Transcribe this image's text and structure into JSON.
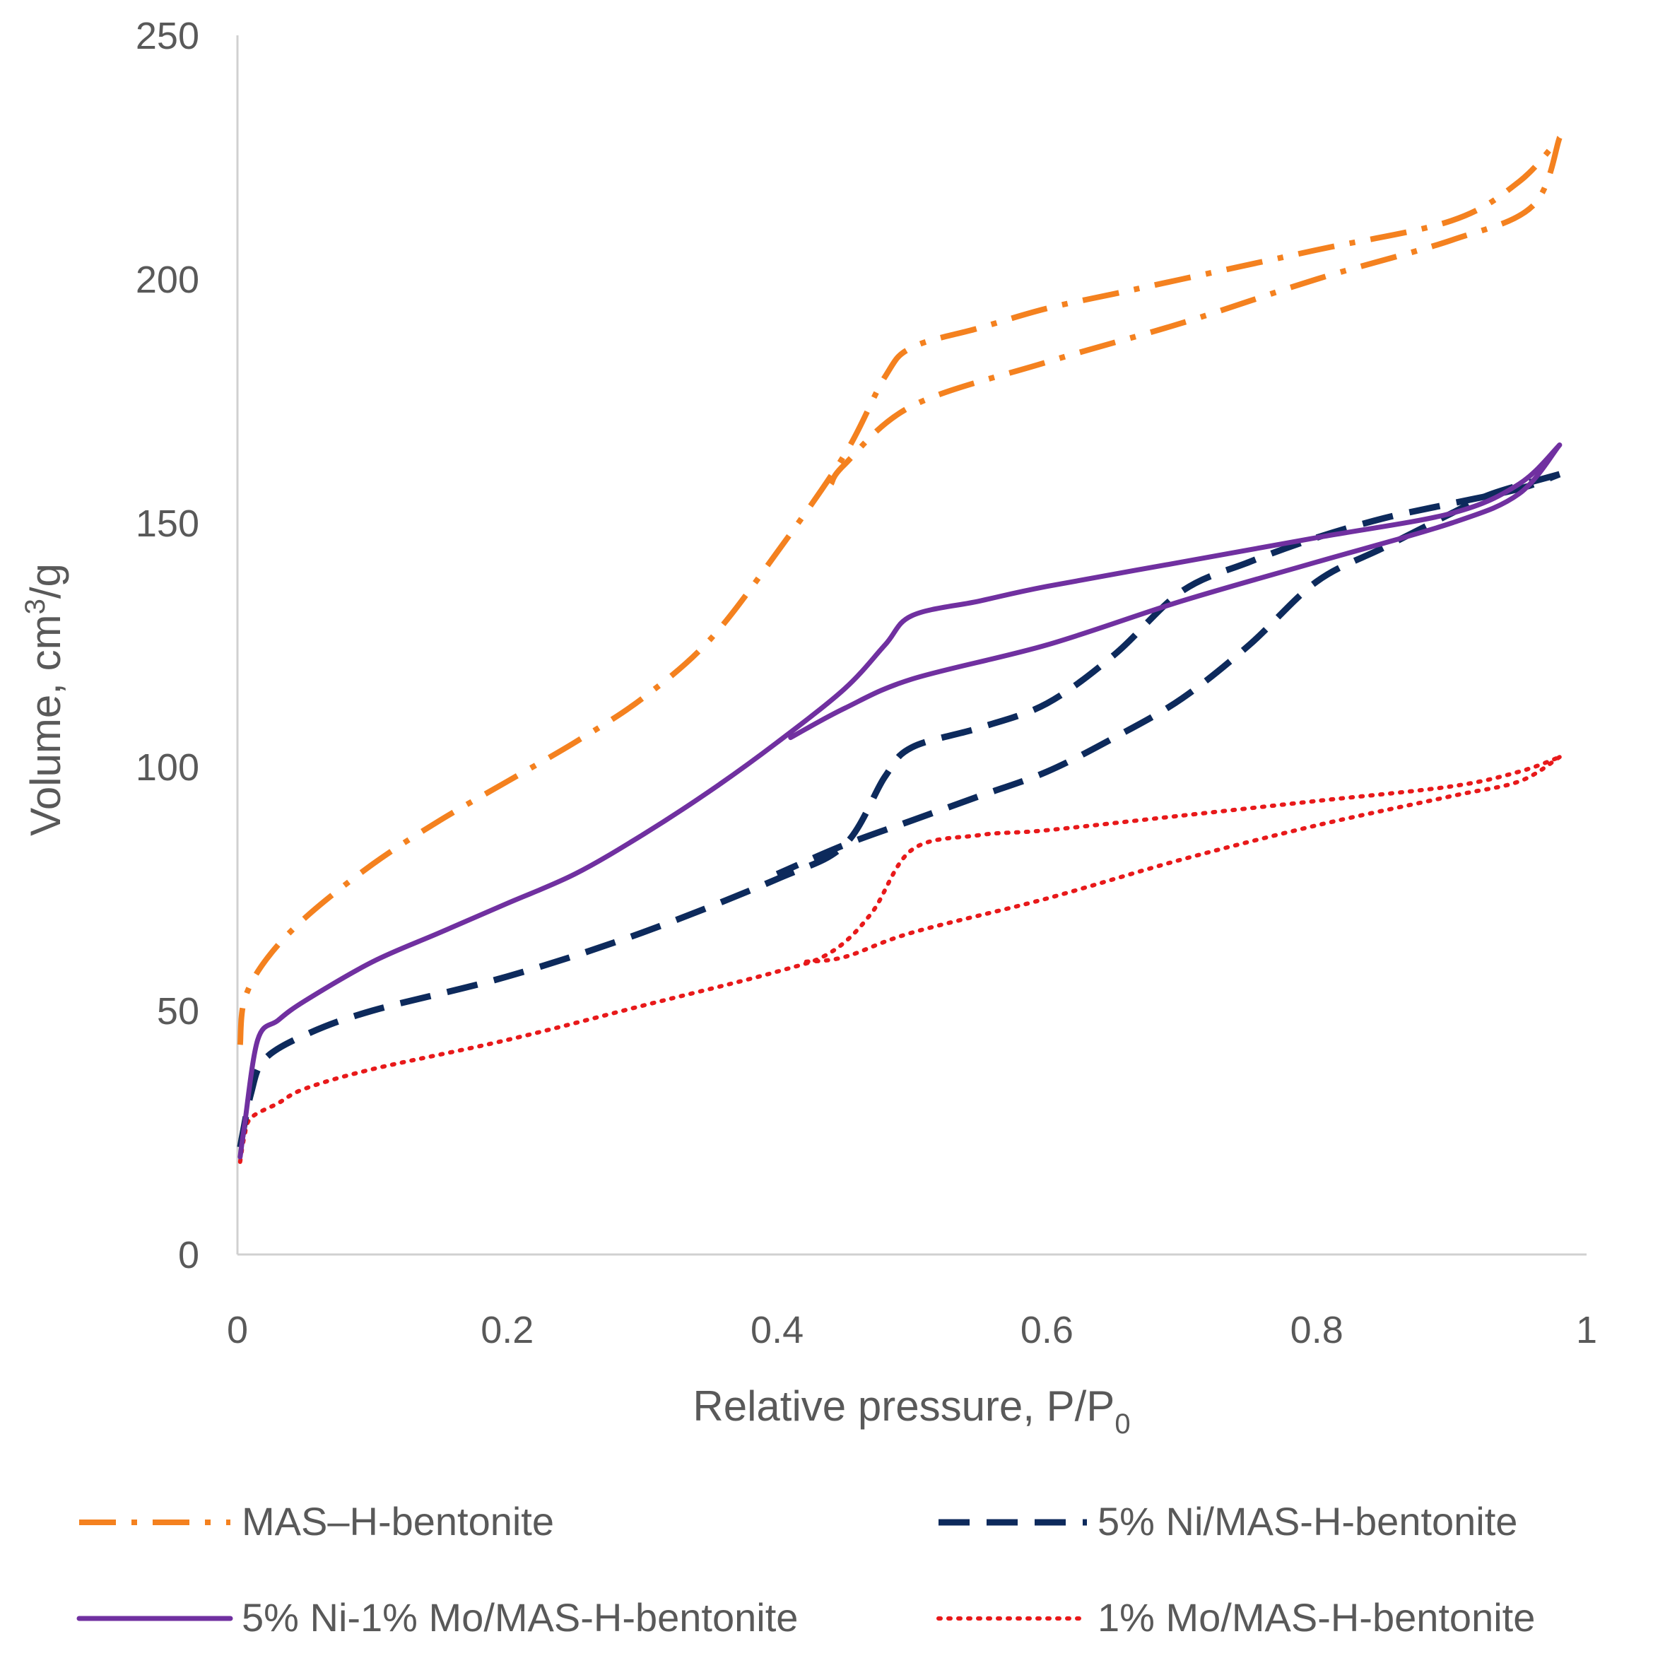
{
  "chart_data": {
    "type": "line",
    "title": "",
    "xlabel": {
      "main": "Relative pressure, P/P",
      "sub": "0"
    },
    "ylabel": {
      "main": "Volume, cm",
      "sup": "3",
      "tail": "/g"
    },
    "xlim": [
      0,
      1
    ],
    "ylim": [
      0,
      250
    ],
    "xticks": [
      0,
      0.2,
      0.4,
      0.6,
      0.8,
      1
    ],
    "xtick_labels": [
      "0",
      "0.2",
      "0.4",
      "0.6",
      "0.8",
      "1"
    ],
    "yticks": [
      0,
      50,
      100,
      150,
      200,
      250
    ],
    "ytick_labels": [
      "0",
      "50",
      "100",
      "150",
      "200",
      "250"
    ],
    "grid": false,
    "legend_position": "bottom",
    "series": [
      {
        "name": "MAS–H-bentonite",
        "color": "#F4811F",
        "style": "dashdot",
        "adsorption": [
          [
            0.002,
            43
          ],
          [
            0.005,
            52
          ],
          [
            0.02,
            60
          ],
          [
            0.05,
            69
          ],
          [
            0.1,
            80
          ],
          [
            0.15,
            89
          ],
          [
            0.2,
            97
          ],
          [
            0.25,
            105
          ],
          [
            0.3,
            114
          ],
          [
            0.35,
            126
          ],
          [
            0.4,
            144
          ],
          [
            0.45,
            164
          ],
          [
            0.48,
            180
          ],
          [
            0.5,
            186
          ],
          [
            0.55,
            190
          ],
          [
            0.6,
            194
          ],
          [
            0.65,
            197
          ],
          [
            0.7,
            200
          ],
          [
            0.8,
            206
          ],
          [
            0.9,
            212
          ],
          [
            0.95,
            220
          ],
          [
            0.98,
            229
          ]
        ],
        "desorption": [
          [
            0.98,
            229
          ],
          [
            0.96,
            215
          ],
          [
            0.9,
            208
          ],
          [
            0.8,
            200
          ],
          [
            0.7,
            191
          ],
          [
            0.6,
            183
          ],
          [
            0.5,
            174
          ],
          [
            0.45,
            162
          ],
          [
            0.44,
            158
          ]
        ]
      },
      {
        "name": "5% Ni/MAS-H-bentonite",
        "color": "#0D2A5C",
        "style": "dashed",
        "adsorption": [
          [
            0.002,
            22
          ],
          [
            0.01,
            33
          ],
          [
            0.02,
            40
          ],
          [
            0.05,
            45
          ],
          [
            0.1,
            50
          ],
          [
            0.2,
            57
          ],
          [
            0.3,
            66
          ],
          [
            0.4,
            77
          ],
          [
            0.45,
            84
          ],
          [
            0.48,
            98
          ],
          [
            0.5,
            104
          ],
          [
            0.55,
            108
          ],
          [
            0.6,
            113
          ],
          [
            0.65,
            123
          ],
          [
            0.7,
            136
          ],
          [
            0.75,
            142
          ],
          [
            0.8,
            147
          ],
          [
            0.85,
            151
          ],
          [
            0.9,
            154
          ],
          [
            0.95,
            157
          ],
          [
            0.98,
            160
          ]
        ],
        "desorption": [
          [
            0.98,
            160
          ],
          [
            0.93,
            156
          ],
          [
            0.9,
            152
          ],
          [
            0.85,
            145
          ],
          [
            0.8,
            138
          ],
          [
            0.75,
            125
          ],
          [
            0.7,
            114
          ],
          [
            0.65,
            106
          ],
          [
            0.6,
            99
          ],
          [
            0.55,
            94
          ],
          [
            0.5,
            89
          ],
          [
            0.45,
            84
          ],
          [
            0.4,
            78
          ]
        ]
      },
      {
        "name": "5% Ni-1% Mo/MAS-H-bentonite",
        "color": "#7030A0",
        "style": "solid",
        "adsorption": [
          [
            0.002,
            20
          ],
          [
            0.005,
            26
          ],
          [
            0.015,
            44
          ],
          [
            0.03,
            48
          ],
          [
            0.05,
            52
          ],
          [
            0.1,
            60
          ],
          [
            0.15,
            66
          ],
          [
            0.2,
            72
          ],
          [
            0.25,
            78
          ],
          [
            0.3,
            86
          ],
          [
            0.35,
            95
          ],
          [
            0.4,
            105
          ],
          [
            0.45,
            116
          ],
          [
            0.48,
            125
          ],
          [
            0.5,
            131
          ],
          [
            0.55,
            134
          ],
          [
            0.6,
            137
          ],
          [
            0.7,
            142
          ],
          [
            0.8,
            147
          ],
          [
            0.9,
            152
          ],
          [
            0.95,
            158
          ],
          [
            0.98,
            166
          ]
        ],
        "desorption": [
          [
            0.98,
            166
          ],
          [
            0.95,
            156
          ],
          [
            0.9,
            150
          ],
          [
            0.8,
            142
          ],
          [
            0.7,
            134
          ],
          [
            0.6,
            125
          ],
          [
            0.5,
            118
          ],
          [
            0.45,
            112
          ],
          [
            0.41,
            106
          ]
        ]
      },
      {
        "name": "1% Mo/MAS-H-bentonite",
        "color": "#E8191A",
        "style": "dotted",
        "adsorption": [
          [
            0.002,
            19
          ],
          [
            0.005,
            24
          ],
          [
            0.01,
            28
          ],
          [
            0.03,
            31
          ],
          [
            0.05,
            34
          ],
          [
            0.1,
            38
          ],
          [
            0.2,
            44
          ],
          [
            0.3,
            51
          ],
          [
            0.4,
            58
          ],
          [
            0.44,
            62
          ],
          [
            0.47,
            70
          ],
          [
            0.5,
            83
          ],
          [
            0.55,
            86
          ],
          [
            0.6,
            87
          ],
          [
            0.7,
            90
          ],
          [
            0.8,
            93
          ],
          [
            0.9,
            96
          ],
          [
            0.95,
            99
          ],
          [
            0.98,
            102
          ]
        ],
        "desorption": [
          [
            0.98,
            102
          ],
          [
            0.95,
            97
          ],
          [
            0.9,
            94
          ],
          [
            0.8,
            88
          ],
          [
            0.7,
            81
          ],
          [
            0.6,
            73
          ],
          [
            0.5,
            66
          ],
          [
            0.45,
            61
          ],
          [
            0.42,
            60
          ]
        ]
      }
    ]
  }
}
